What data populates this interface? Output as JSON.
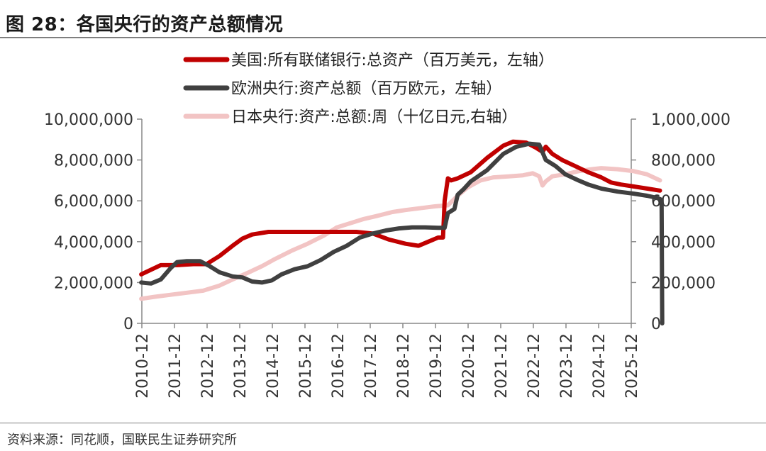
{
  "figure": {
    "title": "图 28：各国央行的资产总额情况",
    "source": "资料来源：同花顺，国联民生证券研究所"
  },
  "chart_data": {
    "type": "line",
    "title": "",
    "x_ticks": [
      "2010-12",
      "2011-12",
      "2012-12",
      "2013-12",
      "2014-12",
      "2015-12",
      "2016-12",
      "2017-12",
      "2018-12",
      "2019-12",
      "2020-12",
      "2021-12",
      "2022-12",
      "2023-12",
      "2024-12",
      "2025-12"
    ],
    "y_left": {
      "ticks": [
        "0",
        "2,000,000",
        "4,000,000",
        "6,000,000",
        "8,000,000",
        "10,000,000"
      ],
      "range": [
        0,
        10000000
      ]
    },
    "y_right": {
      "ticks": [
        "0",
        "200,000",
        "400,000",
        "600,000",
        "800,000",
        "1,000,000"
      ],
      "range": [
        0,
        1000000
      ]
    },
    "grid": false,
    "legend_position": "top-center",
    "series": [
      {
        "name": "美国:所有联储银行:总资产（百万美元，左轴）",
        "axis": "left",
        "color": "#c00000",
        "points": [
          [
            2010.9,
            2400000
          ],
          [
            2011.3,
            2700000
          ],
          [
            2011.5,
            2850000
          ],
          [
            2012.0,
            2850000
          ],
          [
            2012.5,
            2900000
          ],
          [
            2012.9,
            2900000
          ],
          [
            2013.3,
            3300000
          ],
          [
            2013.7,
            3800000
          ],
          [
            2014.0,
            4150000
          ],
          [
            2014.3,
            4350000
          ],
          [
            2014.8,
            4480000
          ],
          [
            2015.5,
            4480000
          ],
          [
            2016.5,
            4480000
          ],
          [
            2017.5,
            4480000
          ],
          [
            2018.0,
            4400000
          ],
          [
            2018.5,
            4100000
          ],
          [
            2019.0,
            3900000
          ],
          [
            2019.4,
            3800000
          ],
          [
            2019.7,
            4000000
          ],
          [
            2020.0,
            4200000
          ],
          [
            2020.15,
            4200000
          ],
          [
            2020.2,
            6000000
          ],
          [
            2020.3,
            7100000
          ],
          [
            2020.4,
            7000000
          ],
          [
            2020.6,
            7100000
          ],
          [
            2021.0,
            7400000
          ],
          [
            2021.5,
            8100000
          ],
          [
            2022.0,
            8700000
          ],
          [
            2022.3,
            8900000
          ],
          [
            2022.7,
            8850000
          ],
          [
            2023.0,
            8600000
          ],
          [
            2023.2,
            8400000
          ],
          [
            2023.3,
            8650000
          ],
          [
            2023.5,
            8300000
          ],
          [
            2023.8,
            8000000
          ],
          [
            2024.2,
            7700000
          ],
          [
            2024.6,
            7400000
          ],
          [
            2025.0,
            7150000
          ],
          [
            2025.3,
            6900000
          ],
          [
            2025.6,
            6800000
          ],
          [
            2026.0,
            6700000
          ],
          [
            2026.4,
            6600000
          ],
          [
            2026.8,
            6500000
          ]
        ]
      },
      {
        "name": "欧洲央行:资产总额（百万欧元，左轴）",
        "axis": "left",
        "color": "#404040",
        "points": [
          [
            2010.9,
            2000000
          ],
          [
            2011.2,
            1950000
          ],
          [
            2011.5,
            2150000
          ],
          [
            2011.8,
            2700000
          ],
          [
            2012.0,
            3000000
          ],
          [
            2012.3,
            3050000
          ],
          [
            2012.7,
            3050000
          ],
          [
            2013.0,
            2800000
          ],
          [
            2013.3,
            2500000
          ],
          [
            2013.7,
            2300000
          ],
          [
            2014.0,
            2250000
          ],
          [
            2014.3,
            2050000
          ],
          [
            2014.6,
            2000000
          ],
          [
            2014.9,
            2100000
          ],
          [
            2015.2,
            2400000
          ],
          [
            2015.6,
            2650000
          ],
          [
            2016.0,
            2800000
          ],
          [
            2016.4,
            3100000
          ],
          [
            2016.8,
            3500000
          ],
          [
            2017.2,
            3800000
          ],
          [
            2017.6,
            4200000
          ],
          [
            2018.0,
            4400000
          ],
          [
            2018.4,
            4550000
          ],
          [
            2018.8,
            4650000
          ],
          [
            2019.2,
            4700000
          ],
          [
            2019.6,
            4700000
          ],
          [
            2020.0,
            4680000
          ],
          [
            2020.2,
            4680000
          ],
          [
            2020.3,
            5400000
          ],
          [
            2020.5,
            5600000
          ],
          [
            2020.6,
            6300000
          ],
          [
            2020.8,
            6600000
          ],
          [
            2021.0,
            6950000
          ],
          [
            2021.5,
            7500000
          ],
          [
            2022.0,
            8300000
          ],
          [
            2022.4,
            8650000
          ],
          [
            2022.8,
            8800000
          ],
          [
            2023.1,
            8750000
          ],
          [
            2023.3,
            8000000
          ],
          [
            2023.6,
            7700000
          ],
          [
            2023.9,
            7300000
          ],
          [
            2024.3,
            7000000
          ],
          [
            2024.6,
            6800000
          ],
          [
            2025.0,
            6600000
          ],
          [
            2025.5,
            6450000
          ],
          [
            2026.0,
            6350000
          ],
          [
            2026.4,
            6250000
          ],
          [
            2026.7,
            6150000
          ],
          [
            2026.85,
            6050000
          ],
          [
            2026.87,
            0
          ]
        ]
      },
      {
        "name": "日本央行:资产:总额:周（十亿日元,右轴）",
        "axis": "right",
        "color": "#f2c4c4",
        "points": [
          [
            2010.9,
            120000
          ],
          [
            2011.3,
            130000
          ],
          [
            2011.8,
            140000
          ],
          [
            2012.3,
            150000
          ],
          [
            2012.8,
            160000
          ],
          [
            2013.3,
            185000
          ],
          [
            2013.7,
            215000
          ],
          [
            2014.2,
            250000
          ],
          [
            2014.6,
            280000
          ],
          [
            2015.0,
            315000
          ],
          [
            2015.5,
            355000
          ],
          [
            2016.0,
            390000
          ],
          [
            2016.5,
            430000
          ],
          [
            2016.9,
            470000
          ],
          [
            2017.3,
            490000
          ],
          [
            2017.7,
            510000
          ],
          [
            2018.1,
            525000
          ],
          [
            2018.6,
            545000
          ],
          [
            2019.0,
            555000
          ],
          [
            2019.5,
            565000
          ],
          [
            2019.9,
            573000
          ],
          [
            2020.3,
            578000
          ],
          [
            2020.6,
            625000
          ],
          [
            2020.9,
            665000
          ],
          [
            2021.3,
            700000
          ],
          [
            2021.7,
            715000
          ],
          [
            2022.2,
            720000
          ],
          [
            2022.6,
            725000
          ],
          [
            2022.9,
            735000
          ],
          [
            2023.1,
            720000
          ],
          [
            2023.2,
            675000
          ],
          [
            2023.3,
            695000
          ],
          [
            2023.5,
            720000
          ],
          [
            2023.9,
            730000
          ],
          [
            2024.3,
            745000
          ],
          [
            2024.7,
            755000
          ],
          [
            2025.0,
            760000
          ],
          [
            2025.5,
            755000
          ],
          [
            2026.0,
            745000
          ],
          [
            2026.4,
            730000
          ],
          [
            2026.8,
            700000
          ]
        ]
      }
    ]
  }
}
